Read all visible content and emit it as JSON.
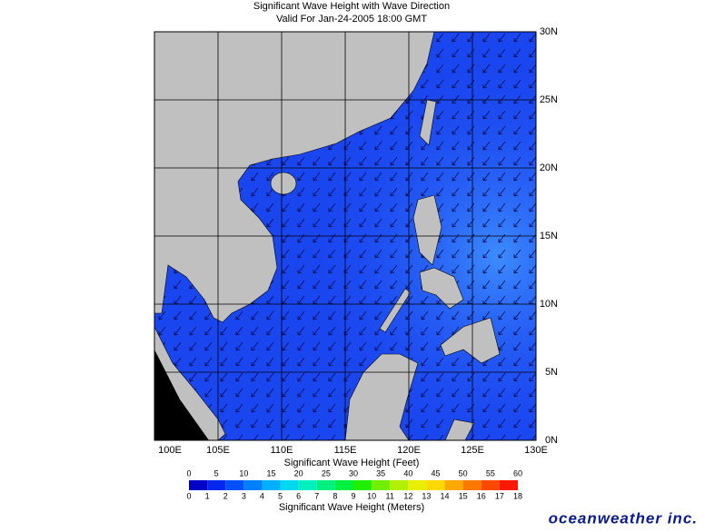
{
  "header": {
    "title": "Significant Wave Height with Wave Direction",
    "subtitle": "Valid For Jan-24-2005 18:00 GMT"
  },
  "map": {
    "lonlim": [
      100,
      130
    ],
    "latlim": [
      0,
      30
    ],
    "lon_ticks": [
      {
        "value": 100,
        "label": "100E"
      },
      {
        "value": 105,
        "label": "105E"
      },
      {
        "value": 110,
        "label": "110E"
      },
      {
        "value": 115,
        "label": "115E"
      },
      {
        "value": 120,
        "label": "120E"
      },
      {
        "value": 125,
        "label": "125E"
      },
      {
        "value": 130,
        "label": "130E"
      }
    ],
    "lat_ticks": [
      {
        "value": 0,
        "label": "0N"
      },
      {
        "value": 5,
        "label": "5N"
      },
      {
        "value": 10,
        "label": "10N"
      },
      {
        "value": 15,
        "label": "15N"
      },
      {
        "value": 20,
        "label": "20N"
      },
      {
        "value": 25,
        "label": "25N"
      },
      {
        "value": 30,
        "label": "30N"
      }
    ]
  },
  "colorbar": {
    "feet_label": "Significant Wave Height (Feet)",
    "meters_label": "Significant Wave Height (Meters)",
    "feet_ticks": [
      0,
      5,
      10,
      15,
      20,
      25,
      30,
      35,
      40,
      45,
      50,
      55,
      60
    ],
    "meter_ticks": [
      0,
      1,
      2,
      3,
      4,
      5,
      6,
      7,
      8,
      9,
      10,
      11,
      12,
      13,
      14,
      15,
      16,
      17,
      18
    ],
    "colors": [
      "#0000c8",
      "#0028f0",
      "#0050ff",
      "#0080ff",
      "#00b0ff",
      "#00d8f0",
      "#00f0c0",
      "#00f080",
      "#00f040",
      "#20f000",
      "#70f000",
      "#b0f000",
      "#e8f000",
      "#ffd800",
      "#ffa800",
      "#ff7800",
      "#ff4800",
      "#ff1800"
    ]
  },
  "logo": "oceanweather inc."
}
